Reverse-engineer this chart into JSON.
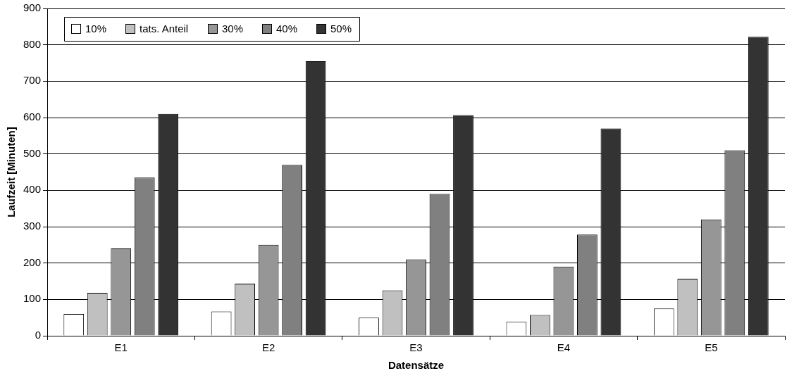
{
  "chart_data": {
    "type": "bar",
    "xlabel": "Datensätze",
    "ylabel": "Laufzeit [Minuten]",
    "categories": [
      "E1",
      "E2",
      "E3",
      "E4",
      "E5"
    ],
    "series": [
      {
        "name": "10%",
        "color": "#ffffff",
        "values": [
          60,
          67,
          50,
          38,
          75
        ]
      },
      {
        "name": "tats. Anteil",
        "color": "#c0c0c0",
        "values": [
          118,
          143,
          125,
          57,
          157
        ]
      },
      {
        "name": "30%",
        "color": "#969696",
        "values": [
          240,
          250,
          210,
          190,
          320
        ]
      },
      {
        "name": "40%",
        "color": "#808080",
        "values": [
          435,
          470,
          390,
          278,
          510
        ]
      },
      {
        "name": "50%",
        "color": "#333333",
        "values": [
          610,
          755,
          607,
          570,
          822
        ]
      }
    ],
    "ylim": [
      0,
      900
    ],
    "yticks": [
      0,
      100,
      200,
      300,
      400,
      500,
      600,
      700,
      800,
      900
    ],
    "grid": "y",
    "legend": "top left"
  }
}
